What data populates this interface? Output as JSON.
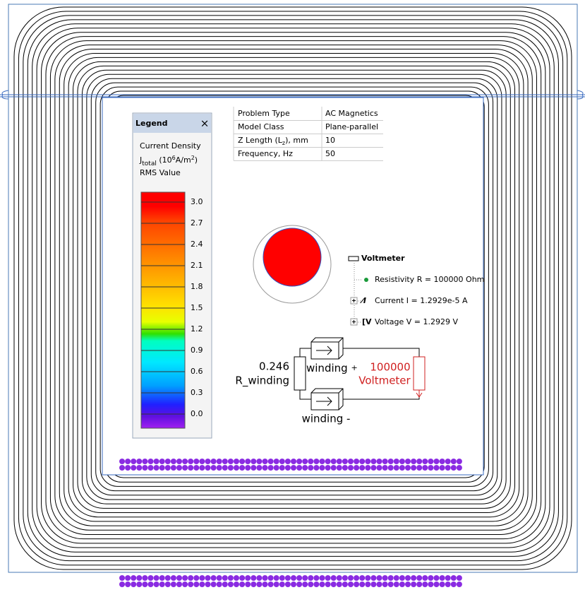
{
  "legend": {
    "title": "Legend",
    "close": "×",
    "quantity": "Current Density",
    "symbol": "J",
    "symbol_sub": "total",
    "unit_open": "(10",
    "unit_exp": "6",
    "unit": "A/m",
    "unit_pow": "2",
    "unit_close": ")",
    "mode": "RMS Value",
    "ticks": [
      "3.0",
      "2.7",
      "2.4",
      "2.1",
      "1.8",
      "1.5",
      "1.2",
      "0.9",
      "0.6",
      "0.3",
      "0.0"
    ]
  },
  "table": {
    "rows": [
      [
        "Problem Type",
        "AC Magnetics"
      ],
      [
        "Model Class",
        "Plane-parallel"
      ],
      [
        {
          "text": "Z Length (L",
          "sub": "z",
          "rest": "), mm"
        },
        "10"
      ],
      [
        "Frequency, Hz",
        "50"
      ]
    ]
  },
  "tree": {
    "title": "Voltmeter",
    "items": [
      "Resistivity R = 100000 Ohm",
      "Current I = 1.2929e-5 A",
      "Voltage V = 1.2929 V"
    ]
  },
  "circuit": {
    "r_value": "0.246",
    "r_name": "R_winding",
    "winding_top": "winding",
    "winding_top_sign": "+",
    "meter_value": "100000",
    "meter_name": "Voltmeter",
    "winding_bottom": "winding -"
  }
}
